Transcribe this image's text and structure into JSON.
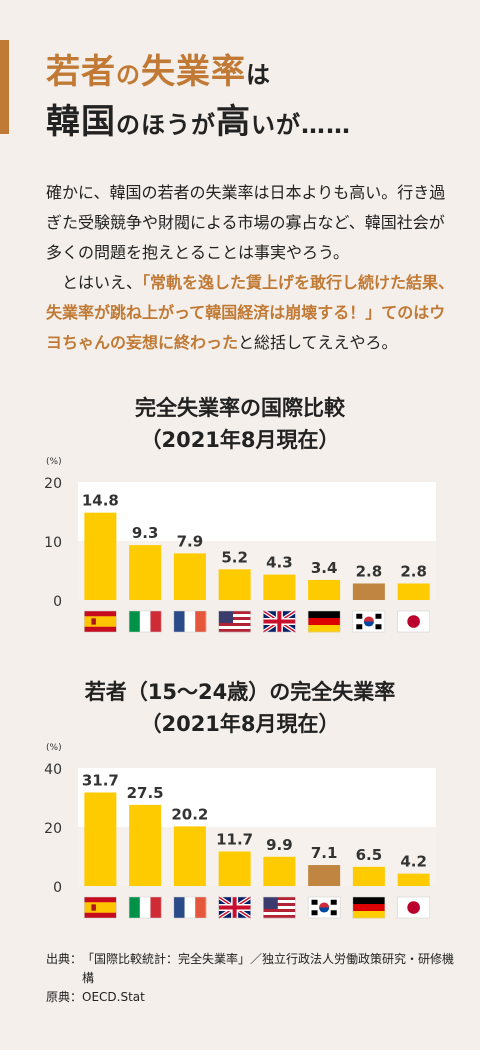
{
  "headline": {
    "line1": [
      "若者",
      "の",
      "失業率",
      "は"
    ],
    "line2": [
      "韓国",
      "のほうが",
      "高",
      "いが……"
    ]
  },
  "body": {
    "p1": "確かに、韓国の若者の失業率は日本よりも高い。行き過ぎた受験競争や財閥による市場の寡占など、韓国社会が多くの問題を抱えとることは事実やろう。",
    "p2_pre": "とはいえ、",
    "p2_highlight": "「常軌を逸した賃上げを敢行し続けた結果、失業率が跳ね上がって韓国経済は崩壊する！」てのはウヨちゃんの妄想に終わった",
    "p2_post": "と総括してええやろ。"
  },
  "colors": {
    "accent": "#c17a35",
    "bar_yellow": "#fecb00",
    "bar_highlight": "#c08540",
    "plot_bg": "#ffffff"
  },
  "chart_data": [
    {
      "type": "bar",
      "title": "完全失業率の国際比較",
      "subtitle": "（2021年8月現在）",
      "ylabel": "(%)",
      "ylim": [
        0,
        20
      ],
      "yticks": [
        0,
        10,
        20
      ],
      "categories": [
        "spain-flag",
        "italy-flag",
        "france-flag",
        "usa-flag",
        "uk-flag",
        "germany-flag",
        "korea-flag",
        "japan-flag"
      ],
      "values": [
        14.8,
        9.3,
        7.9,
        5.2,
        4.3,
        3.4,
        2.8,
        2.8
      ],
      "labels": [
        "14.8",
        "9.3",
        "7.9",
        "5.2",
        "4.3",
        "3.4",
        "2.8",
        "2.8"
      ],
      "highlight_index": 6
    },
    {
      "type": "bar",
      "title": "若者（15〜24歳）の完全失業率",
      "subtitle": "（2021年8月現在）",
      "ylabel": "(%)",
      "ylim": [
        0,
        40
      ],
      "yticks": [
        0,
        20,
        40
      ],
      "categories": [
        "spain-flag",
        "italy-flag",
        "france-flag",
        "uk-flag",
        "usa-flag",
        "korea-flag",
        "germany-flag",
        "japan-flag"
      ],
      "values": [
        31.7,
        27.5,
        20.2,
        11.7,
        9.9,
        7.1,
        6.5,
        4.2
      ],
      "labels": [
        "31.7",
        "27.5",
        "20.2",
        "11.7",
        "9.9",
        "7.1",
        "6.5",
        "4.2"
      ],
      "highlight_index": 5
    }
  ],
  "source": {
    "label1": "出典：",
    "text1": "「国際比較統計：完全失業率」／独立行政法人労働政策研究・研修機構",
    "label2": "原典：",
    "text2": "OECD.Stat"
  }
}
